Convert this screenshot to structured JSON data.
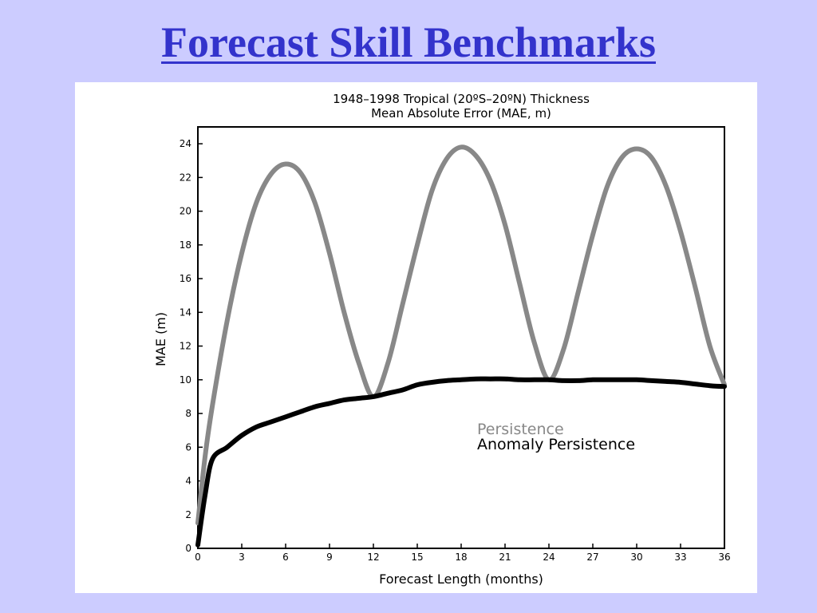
{
  "slide": {
    "title": "Forecast Skill Benchmarks"
  },
  "chart_data": {
    "type": "line",
    "title": "1948–1998 Tropical (20ºS–20ºN) Thickness",
    "subtitle": "Mean Absolute Error (MAE, m)",
    "xlabel": "Forecast Length (months)",
    "ylabel": "MAE (m)",
    "xlim": [
      0,
      36
    ],
    "ylim": [
      0,
      25
    ],
    "x_ticks": [
      0,
      3,
      6,
      9,
      12,
      15,
      18,
      21,
      24,
      27,
      30,
      33,
      36
    ],
    "y_ticks": [
      0,
      2,
      4,
      6,
      8,
      10,
      12,
      14,
      16,
      18,
      20,
      22,
      24
    ],
    "grid": false,
    "legend_position": "right",
    "series": [
      {
        "name": "Persistence",
        "color": "#888888",
        "points": [
          [
            0,
            1.5
          ],
          [
            0.5,
            5.5
          ],
          [
            1,
            8.5
          ],
          [
            2,
            13.5
          ],
          [
            3,
            17.5
          ],
          [
            4,
            20.5
          ],
          [
            5,
            22.2
          ],
          [
            6,
            22.8
          ],
          [
            7,
            22.3
          ],
          [
            8,
            20.5
          ],
          [
            9,
            17.5
          ],
          [
            10,
            14.0
          ],
          [
            11,
            11.0
          ],
          [
            12,
            9.0
          ],
          [
            13,
            11.0
          ],
          [
            14,
            14.5
          ],
          [
            15,
            18.0
          ],
          [
            16,
            21.2
          ],
          [
            17,
            23.1
          ],
          [
            18,
            23.8
          ],
          [
            19,
            23.3
          ],
          [
            20,
            21.8
          ],
          [
            21,
            19.2
          ],
          [
            22,
            15.7
          ],
          [
            23,
            12.2
          ],
          [
            24,
            10.0
          ],
          [
            25,
            11.8
          ],
          [
            26,
            15.2
          ],
          [
            27,
            18.6
          ],
          [
            28,
            21.5
          ],
          [
            29,
            23.2
          ],
          [
            30,
            23.7
          ],
          [
            31,
            23.2
          ],
          [
            32,
            21.5
          ],
          [
            33,
            18.8
          ],
          [
            34,
            15.5
          ],
          [
            35,
            12.0
          ],
          [
            36,
            9.7
          ]
        ]
      },
      {
        "name": "Anomaly Persistence",
        "color": "#000000",
        "points": [
          [
            0,
            0.2
          ],
          [
            0.5,
            3.2
          ],
          [
            1,
            5.3
          ],
          [
            2,
            6.0
          ],
          [
            3,
            6.7
          ],
          [
            4,
            7.2
          ],
          [
            5,
            7.5
          ],
          [
            6,
            7.8
          ],
          [
            7,
            8.1
          ],
          [
            8,
            8.4
          ],
          [
            9,
            8.6
          ],
          [
            10,
            8.8
          ],
          [
            11,
            8.9
          ],
          [
            12,
            9.0
          ],
          [
            13,
            9.2
          ],
          [
            14,
            9.4
          ],
          [
            15,
            9.7
          ],
          [
            16,
            9.85
          ],
          [
            17,
            9.95
          ],
          [
            18,
            10.0
          ],
          [
            19,
            10.05
          ],
          [
            20,
            10.05
          ],
          [
            21,
            10.05
          ],
          [
            22,
            10.0
          ],
          [
            23,
            10.0
          ],
          [
            24,
            10.0
          ],
          [
            25,
            9.95
          ],
          [
            26,
            9.95
          ],
          [
            27,
            10.0
          ],
          [
            28,
            10.0
          ],
          [
            29,
            10.0
          ],
          [
            30,
            10.0
          ],
          [
            31,
            9.95
          ],
          [
            32,
            9.9
          ],
          [
            33,
            9.85
          ],
          [
            34,
            9.75
          ],
          [
            35,
            9.65
          ],
          [
            36,
            9.6
          ]
        ]
      }
    ]
  }
}
